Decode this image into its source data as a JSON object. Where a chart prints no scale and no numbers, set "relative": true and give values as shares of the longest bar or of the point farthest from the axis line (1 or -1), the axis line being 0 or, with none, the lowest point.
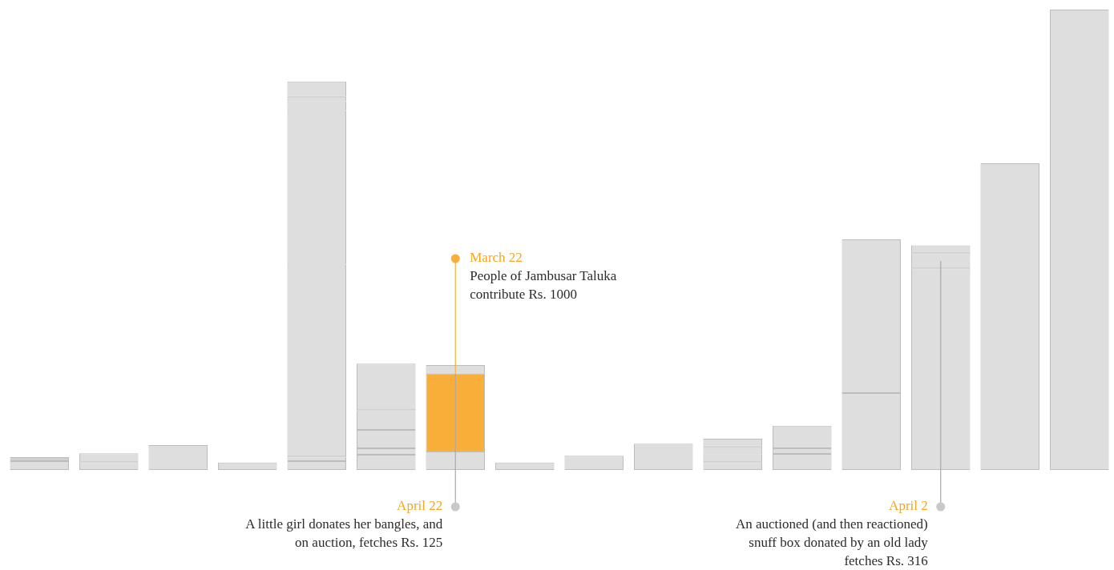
{
  "chart_data": {
    "type": "bar",
    "relative": true,
    "stacked": true,
    "categories": [
      null,
      null,
      null,
      null,
      null,
      null,
      null,
      null,
      null,
      null,
      null,
      null,
      null,
      null,
      null,
      null
    ],
    "series": [
      {
        "color": "#dedede",
        "values": [
          0.019,
          0.017,
          0.054,
          0.016,
          0.019,
          0.033,
          0.04,
          0.016,
          0.031,
          0.057,
          0.017,
          0.035,
          0.167,
          0.438,
          0.666,
          1
        ]
      },
      {
        "colors": [
          "#d0d0d0",
          "#dedede",
          "#dedede",
          "#dedede",
          "#dedede",
          "#dedede",
          "#f9ae3a",
          "#dedede",
          "#dedede",
          "#dedede",
          "#dedede",
          "#dedede",
          "#dedede",
          "#dedede",
          "#dedede",
          "#dedede"
        ],
        "values": [
          0.009,
          0.019,
          null,
          null,
          0.01,
          0.014,
          0.169,
          null,
          null,
          null,
          0.017,
          0.012,
          0.334,
          0.033,
          null,
          null
        ]
      },
      {
        "color": "#dedede",
        "values": [
          null,
          null,
          null,
          null,
          0.417,
          0.04,
          0.019,
          null,
          null,
          null,
          0.017,
          0.049,
          null,
          0.017,
          null,
          null
        ]
      },
      {
        "color": "#dedede",
        "values": [
          null,
          null,
          null,
          null,
          0.334,
          0.043,
          null,
          null,
          null,
          null,
          0.017,
          null,
          null,
          null,
          null,
          null
        ]
      },
      {
        "color": "#dedede",
        "values": [
          null,
          null,
          null,
          null,
          0.021,
          0.101,
          null,
          null,
          null,
          null,
          null,
          null,
          null,
          null,
          null,
          null
        ]
      },
      {
        "color": "#dedede",
        "values": [
          null,
          null,
          null,
          null,
          0.01,
          null,
          null,
          null,
          null,
          null,
          null,
          null,
          null,
          null,
          null,
          null
        ]
      },
      {
        "color": "#dedede",
        "values": [
          null,
          null,
          null,
          null,
          0.033,
          null,
          null,
          null,
          null,
          null,
          null,
          null,
          null,
          null,
          null,
          null
        ]
      }
    ],
    "annotations": [
      "March 22\nPeople of Jambusar Taluka\ncontribute Rs. 1000",
      "April 22\nA little girl donates her bangles, and\non auction, fetches Rs. 125",
      "April 2\nAn auctioned (and then reactioned)\nsnuff box donated by an old lady\nfetches Rs. 316"
    ]
  }
}
